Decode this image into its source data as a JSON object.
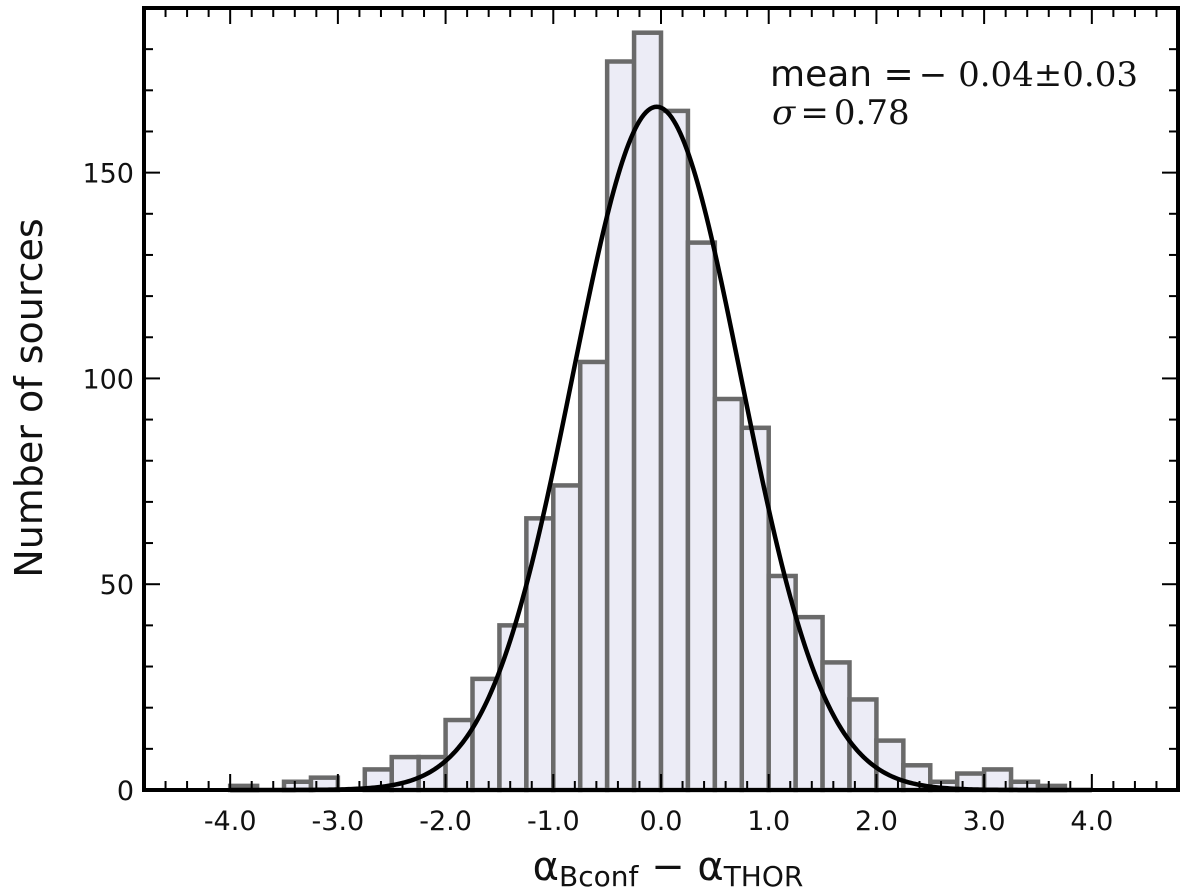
{
  "chart_data": {
    "type": "bar",
    "subtype": "histogram",
    "bin_width": 0.25,
    "bins": [
      {
        "start": -4.0,
        "end": -3.75,
        "count": 1
      },
      {
        "start": -3.75,
        "end": -3.5,
        "count": 0
      },
      {
        "start": -3.5,
        "end": -3.25,
        "count": 2
      },
      {
        "start": -3.25,
        "end": -3.0,
        "count": 3
      },
      {
        "start": -3.0,
        "end": -2.75,
        "count": 0
      },
      {
        "start": -2.75,
        "end": -2.5,
        "count": 5
      },
      {
        "start": -2.5,
        "end": -2.25,
        "count": 8
      },
      {
        "start": -2.25,
        "end": -2.0,
        "count": 8
      },
      {
        "start": -2.0,
        "end": -1.75,
        "count": 17
      },
      {
        "start": -1.75,
        "end": -1.5,
        "count": 27
      },
      {
        "start": -1.5,
        "end": -1.25,
        "count": 40
      },
      {
        "start": -1.25,
        "end": -1.0,
        "count": 66
      },
      {
        "start": -1.0,
        "end": -0.75,
        "count": 74
      },
      {
        "start": -0.75,
        "end": -0.5,
        "count": 104
      },
      {
        "start": -0.5,
        "end": -0.25,
        "count": 177
      },
      {
        "start": -0.25,
        "end": 0.0,
        "count": 184
      },
      {
        "start": 0.0,
        "end": 0.25,
        "count": 165
      },
      {
        "start": 0.25,
        "end": 0.5,
        "count": 133
      },
      {
        "start": 0.5,
        "end": 0.75,
        "count": 95
      },
      {
        "start": 0.75,
        "end": 1.0,
        "count": 88
      },
      {
        "start": 1.0,
        "end": 1.25,
        "count": 52
      },
      {
        "start": 1.25,
        "end": 1.5,
        "count": 42
      },
      {
        "start": 1.5,
        "end": 1.75,
        "count": 31
      },
      {
        "start": 1.75,
        "end": 2.0,
        "count": 22
      },
      {
        "start": 2.0,
        "end": 2.25,
        "count": 12
      },
      {
        "start": 2.25,
        "end": 2.5,
        "count": 6
      },
      {
        "start": 2.5,
        "end": 2.75,
        "count": 2
      },
      {
        "start": 2.75,
        "end": 3.0,
        "count": 4
      },
      {
        "start": 3.0,
        "end": 3.25,
        "count": 5
      },
      {
        "start": 3.25,
        "end": 3.5,
        "count": 2
      },
      {
        "start": 3.5,
        "end": 3.75,
        "count": 1
      }
    ],
    "gaussian_fit": {
      "mean": -0.04,
      "sigma": 0.78,
      "peak": 166
    },
    "xlim": [
      -4.8,
      4.8
    ],
    "ylim": [
      0,
      190
    ],
    "xticks": [
      -4.0,
      -3.0,
      -2.0,
      -1.0,
      0.0,
      1.0,
      2.0,
      3.0,
      4.0
    ],
    "xtick_labels": [
      "-4.0",
      "-3.0",
      "-2.0",
      "-1.0",
      "0.0",
      "1.0",
      "2.0",
      "3.0",
      "4.0"
    ],
    "yticks": [
      0,
      50,
      100,
      150
    ],
    "ytick_labels": [
      "0",
      "50",
      "100",
      "150"
    ],
    "ylabel": "Number of sources",
    "xlabel": {
      "parts": [
        {
          "text": "α",
          "sub": "Bconf"
        },
        {
          "text": " − "
        },
        {
          "text": "α",
          "sub": "THOR"
        }
      ]
    },
    "annotations": {
      "mean_label": "mean =",
      "mean_value": "− 0.04±0.03",
      "sigma_symbol": "σ",
      "sigma_eq": "=",
      "sigma_value": "0.78"
    },
    "colors": {
      "bar_fill": "#ececf6",
      "bar_edge": "#6a6a6a",
      "curve": "#000000"
    },
    "grid": false,
    "legend": "none"
  }
}
